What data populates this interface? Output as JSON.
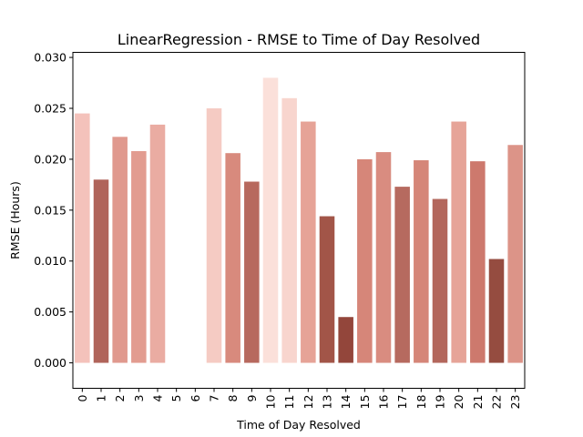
{
  "chart_data": {
    "type": "bar",
    "title": "LinearRegression - RMSE to Time of Day Resolved",
    "xlabel": "Time of Day Resolved",
    "ylabel": "RMSE (Hours)",
    "categories": [
      "0",
      "1",
      "2",
      "3",
      "4",
      "5",
      "6",
      "7",
      "8",
      "9",
      "10",
      "11",
      "12",
      "13",
      "14",
      "15",
      "16",
      "17",
      "18",
      "19",
      "20",
      "21",
      "22",
      "23"
    ],
    "values": [
      0.0245,
      0.018,
      0.0222,
      0.0208,
      0.0234,
      null,
      null,
      0.025,
      0.0206,
      0.0178,
      0.028,
      0.026,
      0.0237,
      0.0144,
      0.0045,
      0.02,
      0.0207,
      0.0173,
      0.0199,
      0.0161,
      0.0237,
      0.0198,
      0.0102,
      0.0214
    ],
    "colors": [
      "#f4c2bb",
      "#b0645a",
      "#e0998e",
      "#e29c90",
      "#eaaca2",
      null,
      null,
      "#f5cbc3",
      "#d88a7d",
      "#b7695e",
      "#fbe0da",
      "#f8d5ce",
      "#e6a397",
      "#a25548",
      "#93463b",
      "#d68679",
      "#d98c80",
      "#b66a5f",
      "#d58678",
      "#b3675c",
      "#e6a498",
      "#cd796d",
      "#954c40",
      "#dc9488"
    ],
    "ylim": [
      -0.0025,
      0.0305
    ],
    "yticks": [
      0.0,
      0.005,
      0.01,
      0.015,
      0.02,
      0.025,
      0.03
    ],
    "ytick_labels": [
      "0.000",
      "0.005",
      "0.010",
      "0.015",
      "0.020",
      "0.025",
      "0.030"
    ],
    "grid": false,
    "legend": "none"
  }
}
